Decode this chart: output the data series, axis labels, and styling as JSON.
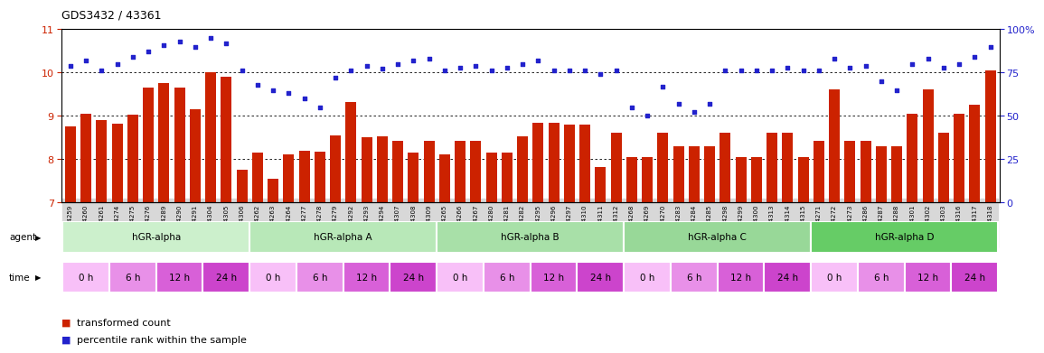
{
  "title": "GDS3432 / 43361",
  "sample_labels": [
    "GSM154259",
    "GSM154260",
    "GSM154261",
    "GSM154274",
    "GSM154275",
    "GSM154276",
    "GSM154289",
    "GSM154290",
    "GSM154291",
    "GSM154304",
    "GSM154305",
    "GSM154306",
    "GSM154262",
    "GSM154263",
    "GSM154264",
    "GSM154277",
    "GSM154278",
    "GSM154279",
    "GSM154292",
    "GSM154293",
    "GSM154294",
    "GSM154307",
    "GSM154308",
    "GSM154309",
    "GSM154265",
    "GSM154266",
    "GSM154267",
    "GSM154280",
    "GSM154281",
    "GSM154282",
    "GSM154295",
    "GSM154296",
    "GSM154297",
    "GSM154310",
    "GSM154311",
    "GSM154312",
    "GSM154268",
    "GSM154269",
    "GSM154270",
    "GSM154283",
    "GSM154284",
    "GSM154285",
    "GSM154298",
    "GSM154299",
    "GSM154300",
    "GSM154313",
    "GSM154314",
    "GSM154315",
    "GSM154271",
    "GSM154272",
    "GSM154273",
    "GSM154286",
    "GSM154287",
    "GSM154288",
    "GSM154301",
    "GSM154302",
    "GSM154303",
    "GSM154316",
    "GSM154317",
    "GSM154318"
  ],
  "bar_values": [
    8.75,
    9.05,
    8.9,
    8.82,
    9.02,
    9.65,
    9.75,
    9.65,
    9.15,
    10.0,
    9.9,
    7.75,
    8.15,
    7.55,
    8.12,
    8.2,
    8.18,
    8.55,
    9.32,
    8.5,
    8.52,
    8.42,
    8.15,
    8.42,
    8.12,
    8.42,
    8.42,
    8.15,
    8.15,
    8.52,
    8.85,
    8.85,
    8.8,
    8.8,
    7.82,
    8.62,
    8.05,
    8.05,
    8.62,
    8.3,
    8.3,
    8.3,
    8.62,
    8.05,
    8.05,
    8.62,
    8.62,
    8.05,
    8.42,
    9.62,
    8.42,
    8.42,
    8.3,
    8.3,
    9.05,
    9.62,
    8.62,
    9.05,
    9.25,
    10.05
  ],
  "dot_values_pct": [
    79,
    82,
    76,
    80,
    84,
    87,
    91,
    93,
    90,
    95,
    92,
    76,
    68,
    65,
    63,
    60,
    55,
    72,
    76,
    79,
    77,
    80,
    82,
    83,
    76,
    78,
    79,
    76,
    78,
    80,
    82,
    76,
    76,
    76,
    74,
    76,
    55,
    50,
    67,
    57,
    52,
    57,
    76,
    76,
    76,
    76,
    78,
    76,
    76,
    83,
    78,
    79,
    70,
    65,
    80,
    83,
    78,
    80,
    84,
    90
  ],
  "bar_color": "#cc2200",
  "dot_color": "#2222cc",
  "ylim_left": [
    7,
    11
  ],
  "ylim_right": [
    0,
    100
  ],
  "yticks_left": [
    7,
    8,
    9,
    10,
    11
  ],
  "yticks_right": [
    0,
    25,
    50,
    75,
    100
  ],
  "groups": [
    {
      "label": "hGR-alpha",
      "start": 0,
      "end": 12,
      "agent_color": "#ccf0cc"
    },
    {
      "label": "hGR-alpha A",
      "start": 12,
      "end": 24,
      "agent_color": "#b8e8b8"
    },
    {
      "label": "hGR-alpha B",
      "start": 24,
      "end": 36,
      "agent_color": "#a8e0a8"
    },
    {
      "label": "hGR-alpha C",
      "start": 36,
      "end": 48,
      "agent_color": "#98d898"
    },
    {
      "label": "hGR-alpha D",
      "start": 48,
      "end": 60,
      "agent_color": "#66cc66"
    }
  ],
  "time_labels": [
    "0 h",
    "6 h",
    "12 h",
    "24 h"
  ],
  "time_colors": [
    "#f8c0f8",
    "#e890e8",
    "#d860d8",
    "#cc44cc"
  ],
  "legend_bar_label": "transformed count",
  "legend_dot_label": "percentile rank within the sample",
  "agent_label": "agent",
  "time_label": "time",
  "bg_xtick_color": "#d8d8d8"
}
